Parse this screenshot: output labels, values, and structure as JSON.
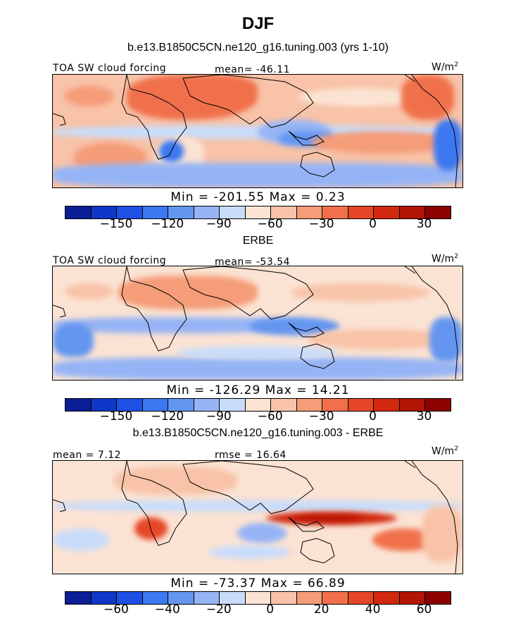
{
  "figure": {
    "title": "DJF",
    "colors": {
      "land_outline": "#000000",
      "background": "#ffffff"
    }
  },
  "chart_data": [
    {
      "type": "heatmap",
      "panel": "model",
      "title": "b.e13.B1850C5CN.ne120_g16.tuning.003 (yrs 1-10)",
      "variable_label": "TOA SW cloud forcing",
      "stat_text": "mean=  -46.11",
      "units": "W/m",
      "units_sup": "2",
      "minmax_text": "Min  =  -201.55  Max  =     0.23",
      "min": -201.55,
      "max": 0.23,
      "mean": -46.11,
      "colorbar": {
        "colors": [
          "#0a1e96",
          "#0f37c8",
          "#1e50e6",
          "#3c78f0",
          "#6496f0",
          "#96b4f5",
          "#c8dcfa",
          "#fbe3d3",
          "#f8c3a8",
          "#f59c78",
          "#f0704b",
          "#e64628",
          "#d2280f",
          "#b41405",
          "#8c0000"
        ],
        "ticks": [
          {
            "label": "-150",
            "index": 2
          },
          {
            "label": "-120",
            "index": 4
          },
          {
            "label": "-90",
            "index": 6
          },
          {
            "label": "-60",
            "index": 8
          },
          {
            "label": "-30",
            "index": 10
          },
          {
            "label": "0",
            "index": 12
          },
          {
            "label": "30",
            "index": 14
          }
        ]
      }
    },
    {
      "type": "heatmap",
      "panel": "observations",
      "title": "ERBE",
      "variable_label": "TOA SW cloud forcing",
      "stat_text": "mean=  -53.54",
      "units": "W/m",
      "units_sup": "2",
      "minmax_text": "Min  =  -126.29  Max  =    14.21",
      "min": -126.29,
      "max": 14.21,
      "mean": -53.54,
      "colorbar": {
        "colors": [
          "#0a1e96",
          "#0f37c8",
          "#1e50e6",
          "#3c78f0",
          "#6496f0",
          "#96b4f5",
          "#c8dcfa",
          "#fbe3d3",
          "#f8c3a8",
          "#f59c78",
          "#f0704b",
          "#e64628",
          "#d2280f",
          "#b41405",
          "#8c0000"
        ],
        "ticks": [
          {
            "label": "-150",
            "index": 2
          },
          {
            "label": "-120",
            "index": 4
          },
          {
            "label": "-90",
            "index": 6
          },
          {
            "label": "-60",
            "index": 8
          },
          {
            "label": "-30",
            "index": 10
          },
          {
            "label": "0",
            "index": 12
          },
          {
            "label": "30",
            "index": 14
          }
        ]
      }
    },
    {
      "type": "heatmap",
      "panel": "difference",
      "title": "b.e13.B1850C5CN.ne120_g16.tuning.003 - ERBE",
      "variable_label": "",
      "stat_text": "mean  =    7.12",
      "rmse_text": "rmse  =   16.64",
      "units": "W/m",
      "units_sup": "2",
      "minmax_text": "Min  =  -73.37  Max  =   66.89",
      "min": -73.37,
      "max": 66.89,
      "mean": 7.12,
      "rmse": 16.64,
      "colorbar": {
        "colors": [
          "#0a1e96",
          "#0f37c8",
          "#1e50e6",
          "#3c78f0",
          "#6496f0",
          "#96b4f5",
          "#c8dcfa",
          "#fbe3d3",
          "#f8c3a8",
          "#f59c78",
          "#f0704b",
          "#e64628",
          "#d2280f",
          "#b41405",
          "#8c0000"
        ],
        "ticks": [
          {
            "label": "-60",
            "index": 2
          },
          {
            "label": "-40",
            "index": 4
          },
          {
            "label": "-20",
            "index": 6
          },
          {
            "label": "0",
            "index": 8
          },
          {
            "label": "20",
            "index": 10
          },
          {
            "label": "40",
            "index": 12
          },
          {
            "label": "60",
            "index": 14
          }
        ]
      }
    }
  ]
}
